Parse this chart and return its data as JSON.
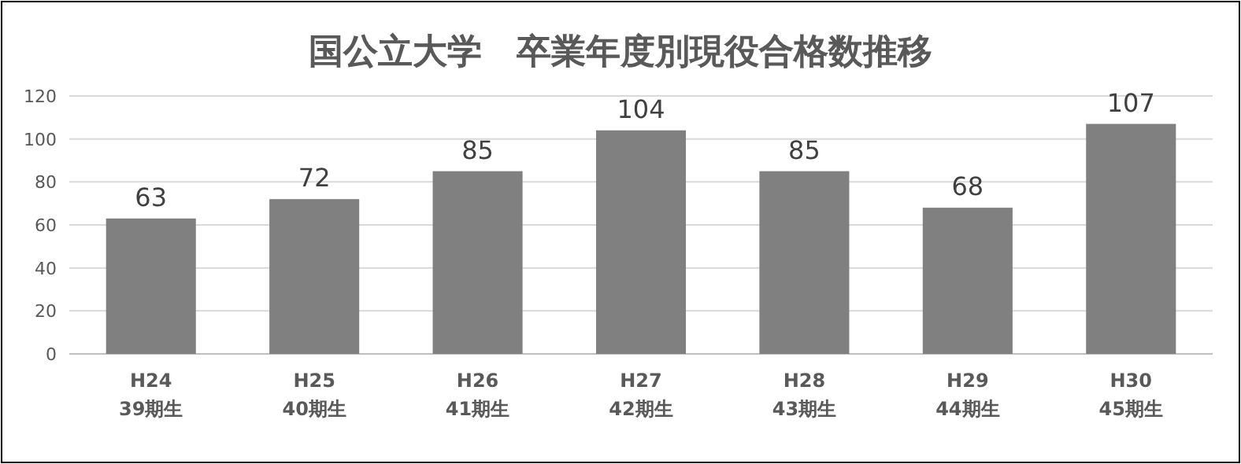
{
  "chart_data": {
    "type": "bar",
    "title": "国公立大学　卒業年度別現役合格数推移",
    "categories": [
      "H24\n39期生",
      "H25\n40期生",
      "H26\n41期生",
      "H27\n42期生",
      "H28\n43期生",
      "H29\n44期生",
      "H30\n45期生"
    ],
    "values": [
      63,
      72,
      85,
      104,
      85,
      68,
      107
    ],
    "color": "#808080",
    "ylim": [
      0,
      120
    ],
    "yticks": [
      0,
      20,
      40,
      60,
      80,
      100,
      120
    ],
    "grid": "y",
    "data_labels": true
  }
}
